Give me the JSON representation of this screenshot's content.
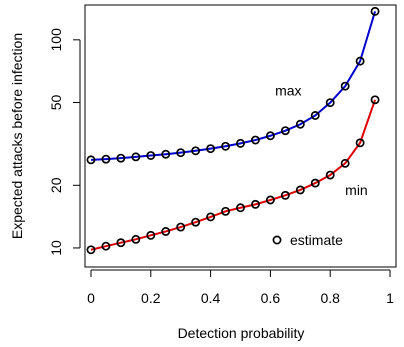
{
  "chart_data": {
    "type": "line",
    "xlabel": "Detection probability",
    "ylabel": "Expected attacks before infection",
    "x_ticks": [
      0,
      0.2,
      0.4,
      0.6,
      0.8,
      1
    ],
    "x_tick_labels": [
      "0",
      "0.2",
      "0.4",
      "0.6",
      "0.8",
      "1"
    ],
    "y_ticks": [
      10,
      20,
      50,
      100
    ],
    "y_tick_labels": [
      "10",
      "20",
      "50",
      "100"
    ],
    "y_scale": "log",
    "xlim": [
      -0.02,
      1.02
    ],
    "ylim": [
      8.1,
      147
    ],
    "grid": false,
    "x": [
      0,
      0.05,
      0.1,
      0.15,
      0.2,
      0.25,
      0.3,
      0.35,
      0.4,
      0.45,
      0.5,
      0.55,
      0.6,
      0.65,
      0.7,
      0.75,
      0.8,
      0.85,
      0.9,
      0.95
    ],
    "series": [
      {
        "name": "max",
        "color": "#0000cc",
        "values": [
          26.5,
          26.7,
          27.0,
          27.4,
          27.8,
          28.2,
          28.7,
          29.3,
          30.0,
          30.8,
          31.8,
          33.0,
          34.6,
          36.6,
          39.3,
          43.3,
          49.9,
          59.9,
          79.0,
          137.0
        ]
      },
      {
        "name": "min",
        "color": "#dd0000",
        "values": [
          9.8,
          10.2,
          10.6,
          11.0,
          11.5,
          12.0,
          12.6,
          13.3,
          14.1,
          15.0,
          15.6,
          16.2,
          17.0,
          17.9,
          19.0,
          20.5,
          22.4,
          25.5,
          32.0,
          51.5
        ]
      }
    ],
    "legend": {
      "position": "bottom-right",
      "label": "estimate"
    }
  }
}
